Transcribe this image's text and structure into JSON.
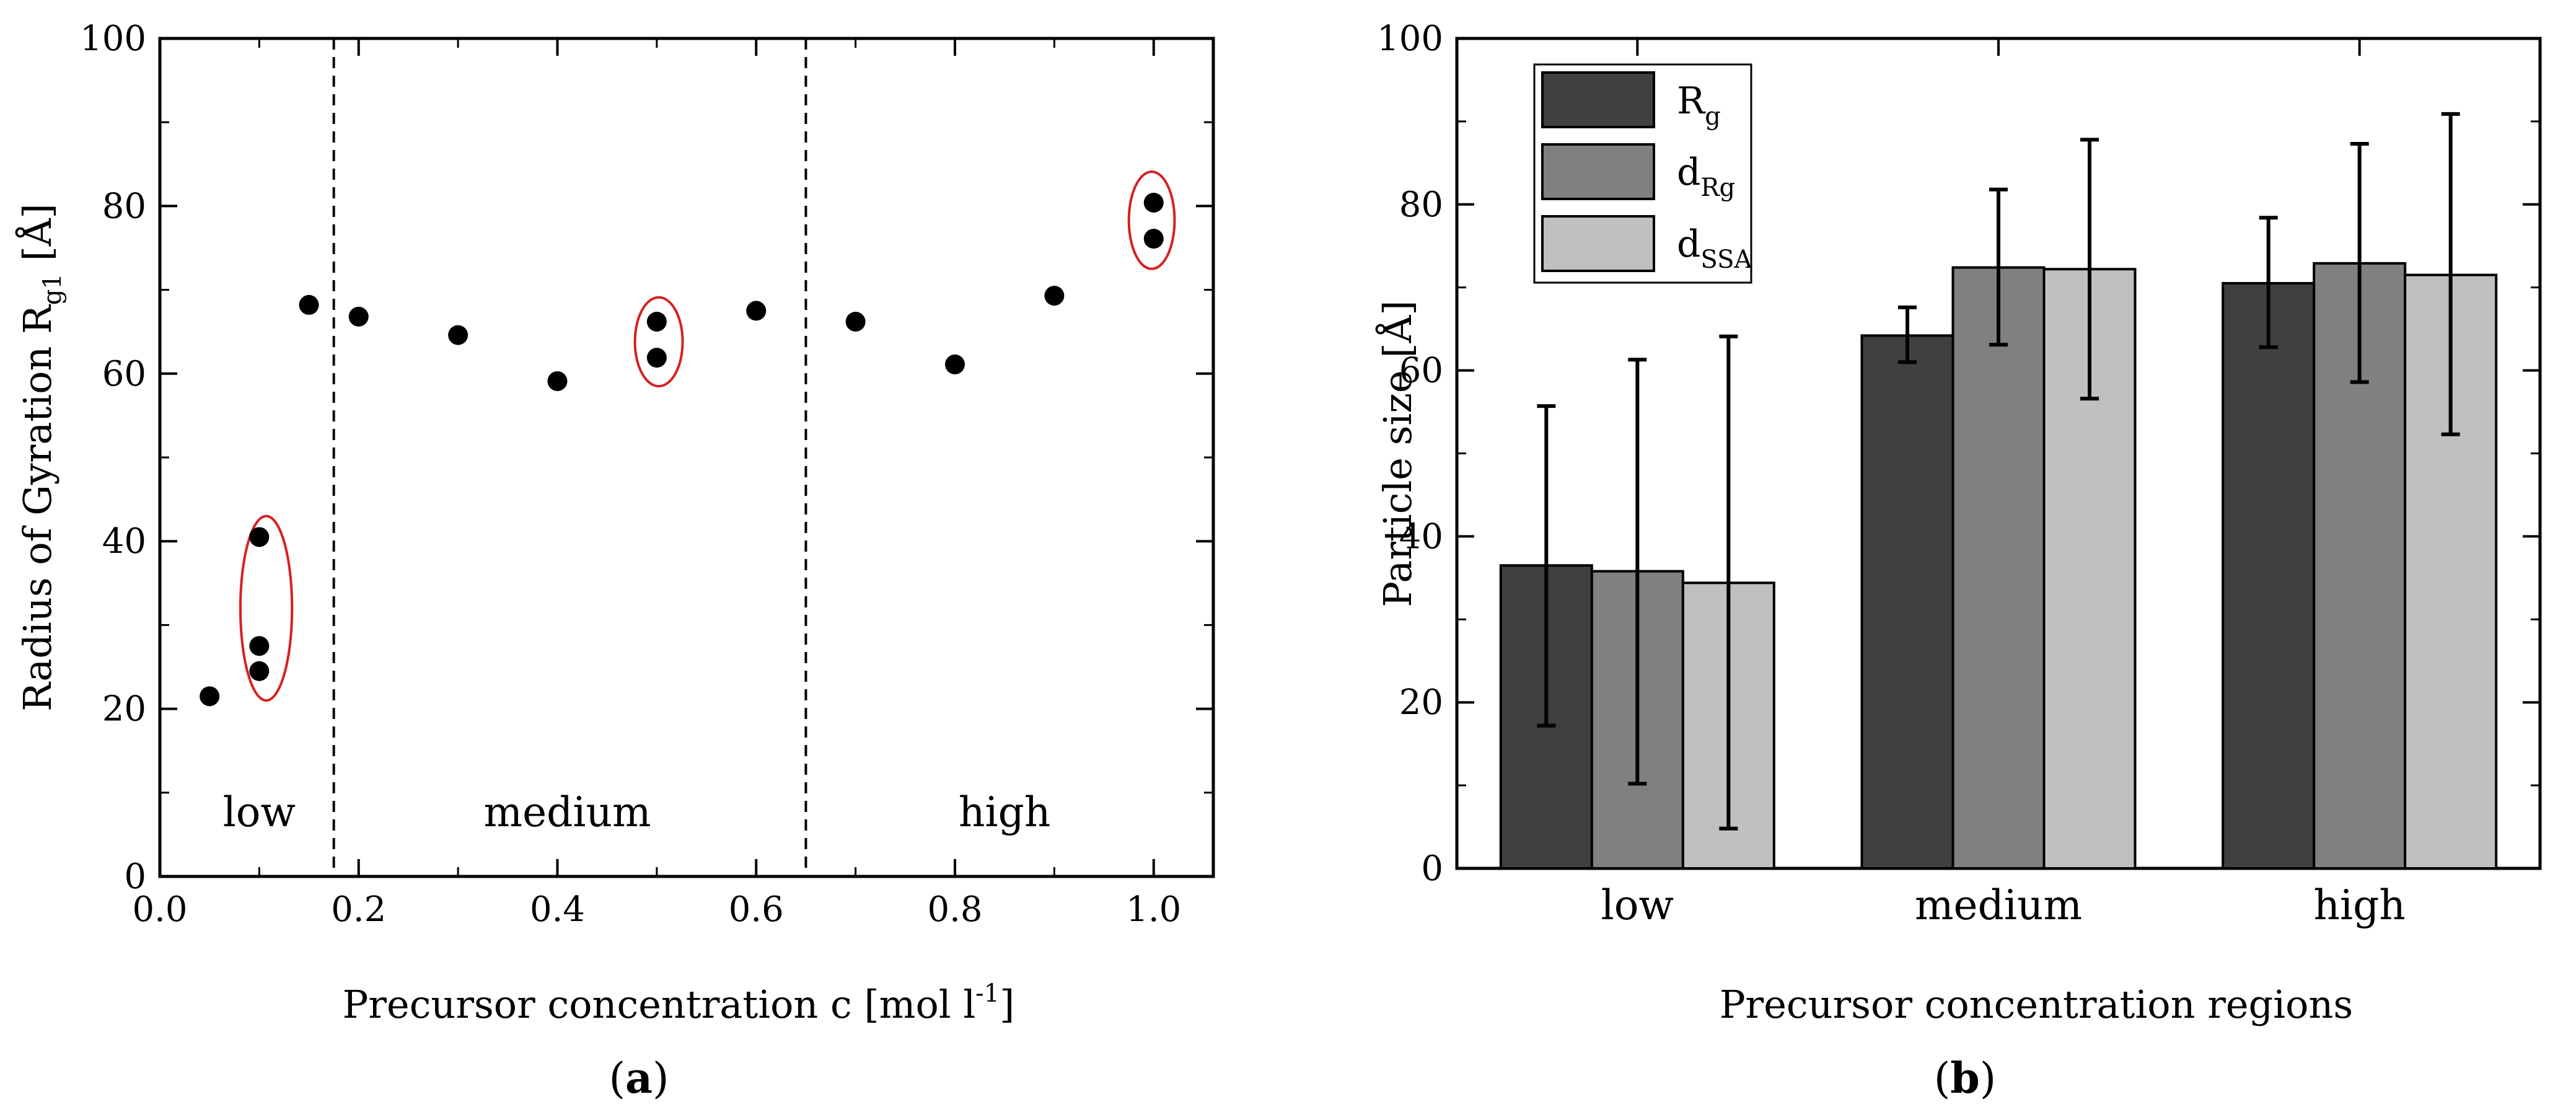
{
  "colors": {
    "point": "#000000",
    "highlight_ellipse": "#d62020",
    "bar_rg": "#404040",
    "bar_drg": "#808080",
    "bar_dssa": "#c0c0c0"
  },
  "chart_data": [
    {
      "panel": "a",
      "type": "scatter",
      "panel_label": "a",
      "xlabel_main": "Precursor concentration c [mol l",
      "xlabel_sup": "-1",
      "xlabel_end": "]",
      "ylabel_main": "Radius of Gyration R",
      "ylabel_sub": "g1",
      "ylabel_end": " [Å]",
      "xlim": [
        0.0,
        1.06
      ],
      "ylim": [
        0,
        100
      ],
      "x_ticks": [
        0.0,
        0.2,
        0.4,
        0.6,
        0.8,
        1.0
      ],
      "x_tick_labels": [
        "0.0",
        "0.2",
        "0.4",
        "0.6",
        "0.8",
        "1.0"
      ],
      "y_ticks": [
        0,
        20,
        40,
        60,
        80,
        100
      ],
      "y_tick_labels": [
        "0",
        "20",
        "40",
        "60",
        "80",
        "100"
      ],
      "points": [
        {
          "x": 0.05,
          "y": 21.5
        },
        {
          "x": 0.1,
          "y": 40.5
        },
        {
          "x": 0.1,
          "y": 27.5
        },
        {
          "x": 0.1,
          "y": 24.5
        },
        {
          "x": 0.15,
          "y": 68.2
        },
        {
          "x": 0.2,
          "y": 66.8
        },
        {
          "x": 0.3,
          "y": 64.6
        },
        {
          "x": 0.4,
          "y": 59.1
        },
        {
          "x": 0.5,
          "y": 66.2
        },
        {
          "x": 0.5,
          "y": 61.9
        },
        {
          "x": 0.6,
          "y": 67.5
        },
        {
          "x": 0.7,
          "y": 66.2
        },
        {
          "x": 0.8,
          "y": 61.1
        },
        {
          "x": 0.9,
          "y": 69.3
        },
        {
          "x": 1.0,
          "y": 80.4
        },
        {
          "x": 1.0,
          "y": 76.1
        }
      ],
      "region_boundaries": [
        0.175,
        0.65
      ],
      "regions": [
        {
          "label": "low",
          "x_center": 0.1,
          "y": 6
        },
        {
          "label": "medium",
          "x_center": 0.41,
          "y": 6
        },
        {
          "label": "high",
          "x_center": 0.85,
          "y": 6
        }
      ],
      "highlight_ellipses": [
        {
          "cx": 0.107,
          "cy": 32.0,
          "rx": 0.026,
          "ry": 11.0
        },
        {
          "cx": 0.502,
          "cy": 63.8,
          "rx": 0.024,
          "ry": 5.3
        },
        {
          "cx": 0.998,
          "cy": 78.3,
          "rx": 0.023,
          "ry": 5.8
        }
      ]
    },
    {
      "panel": "b",
      "type": "bar",
      "panel_label": "b",
      "xlabel": "Precursor concentration regions",
      "ylabel_main": "Particle size [",
      "ylabel_unit": "Å",
      "ylabel_end": "]",
      "categories": [
        "low",
        "medium",
        "high"
      ],
      "ylim": [
        0,
        100
      ],
      "y_ticks": [
        0,
        20,
        40,
        60,
        80,
        100
      ],
      "y_tick_labels": [
        "0",
        "20",
        "40",
        "60",
        "80",
        "100"
      ],
      "series": [
        {
          "name": "R",
          "name_sub": "g",
          "values": [
            36.5,
            64.2,
            70.5
          ],
          "err_low": [
            17.2,
            61.0,
            62.8
          ],
          "err_high": [
            55.7,
            67.6,
            78.4
          ]
        },
        {
          "name": "d",
          "name_sub": "Rg",
          "values": [
            35.8,
            72.4,
            72.9
          ],
          "err_low": [
            10.2,
            63.1,
            58.6
          ],
          "err_high": [
            61.3,
            81.8,
            87.3
          ]
        },
        {
          "name": "d",
          "name_sub": "SSA",
          "values": [
            34.4,
            72.2,
            71.5
          ],
          "err_low": [
            4.8,
            56.6,
            52.3
          ],
          "err_high": [
            64.1,
            87.8,
            90.9
          ]
        }
      ],
      "legend_position": "top-left"
    }
  ]
}
